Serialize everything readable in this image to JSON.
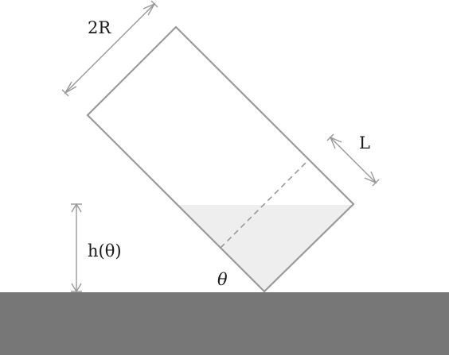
{
  "labels": {
    "diameter": "2R",
    "fill_length": "L",
    "height": "h(θ)",
    "angle": "θ"
  },
  "colors": {
    "ground": "#777777",
    "container_outline": "#999999",
    "liquid_fill": "#eeeeee",
    "dimension_lines": "#999999",
    "text": "#1a1a1a"
  }
}
